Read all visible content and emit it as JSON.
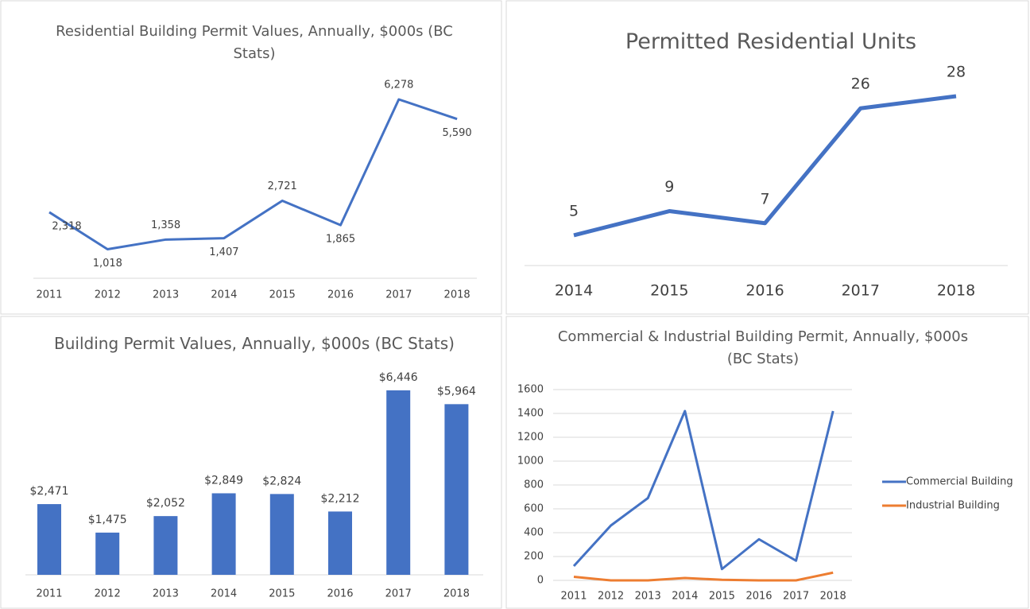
{
  "chart_data": [
    {
      "type": "line",
      "title": "Residential Building Permit Values, Annually, $000s (BC Stats)",
      "categories": [
        "2011",
        "2012",
        "2013",
        "2014",
        "2015",
        "2016",
        "2017",
        "2018"
      ],
      "values": [
        2318,
        1018,
        1358,
        1407,
        2721,
        1865,
        6278,
        5590
      ],
      "value_labels": [
        "2,318",
        "1,018",
        "1,358",
        "1,407",
        "2,721",
        "1,865",
        "6,278",
        "5,590"
      ],
      "color": "#4472c4"
    },
    {
      "type": "line",
      "title": "Permitted Residential Units",
      "categories": [
        "2014",
        "2015",
        "2016",
        "2017",
        "2018"
      ],
      "values": [
        5,
        9,
        7,
        26,
        28
      ],
      "color": "#4472c4"
    },
    {
      "type": "bar",
      "title": "Building Permit Values, Annually, $000s (BC Stats)",
      "categories": [
        "2011",
        "2012",
        "2013",
        "2014",
        "2015",
        "2016",
        "2017",
        "2018"
      ],
      "values": [
        2471,
        1475,
        2052,
        2849,
        2824,
        2212,
        6446,
        5964
      ],
      "value_labels": [
        "$2,471",
        "$1,475",
        "$2,052",
        "$2,849",
        "$2,824",
        "$2,212",
        "$6,446",
        "$5,964"
      ],
      "color": "#4472c4"
    },
    {
      "type": "multiline",
      "title": "Commercial & Industrial Building Permit, Annually, $000s (BC Stats)",
      "categories": [
        "2011",
        "2012",
        "2013",
        "2014",
        "2015",
        "2016",
        "2017",
        "2018"
      ],
      "series": [
        {
          "name": "Commercial Building",
          "color": "#4472c4",
          "values": [
            120,
            460,
            690,
            1420,
            95,
            345,
            165,
            1420
          ]
        },
        {
          "name": "Industrial Building",
          "color": "#ed7d31",
          "values": [
            30,
            0,
            0,
            20,
            5,
            0,
            0,
            65
          ]
        }
      ],
      "ylim": [
        0,
        1600
      ],
      "yticks": [
        0,
        200,
        400,
        600,
        800,
        1000,
        1200,
        1400,
        1600
      ],
      "grid": true,
      "legend": "right"
    }
  ]
}
